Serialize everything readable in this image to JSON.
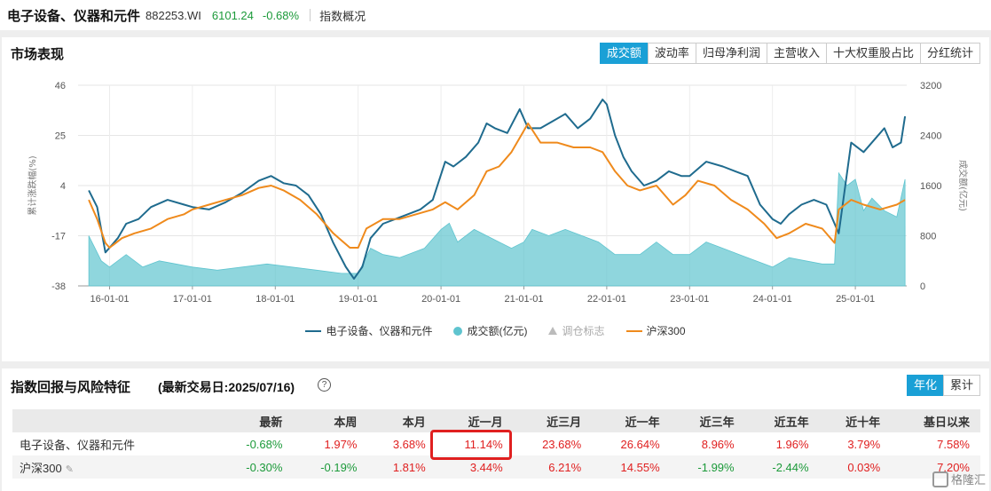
{
  "header": {
    "name": "电子设备、仪器和元件",
    "code": "882253.WI",
    "price": "6101.24",
    "change": "-0.68%",
    "overview": "指数概况"
  },
  "market": {
    "title": "市场表现",
    "tabs": [
      "成交额",
      "波动率",
      "归母净利润",
      "主营收入",
      "十大权重股占比",
      "分红统计"
    ],
    "active_tab": 0
  },
  "chart_data": {
    "type": "line",
    "x_ticks": [
      "16-01-01",
      "17-01-01",
      "18-01-01",
      "19-01-01",
      "20-01-01",
      "21-01-01",
      "22-01-01",
      "23-01-01",
      "24-01-01",
      "25-01-01"
    ],
    "y_left_ticks": [
      "46",
      "25",
      "4",
      "-17",
      "-38"
    ],
    "y_right_ticks": [
      "3200",
      "2400",
      "1600",
      "800",
      "0"
    ],
    "y_left_label": "累计涨跌幅(%)",
    "y_right_label": "成交额(亿元)",
    "ylim_left": [
      -38,
      46
    ],
    "ylim_right": [
      0,
      3200
    ],
    "grid": true,
    "legend_position": "bottom",
    "series": [
      {
        "name": "电子设备、仪器和元件",
        "color": "#1f6b8e",
        "type": "line",
        "axis": "left",
        "points": [
          [
            2015.75,
            2
          ],
          [
            2015.85,
            -5
          ],
          [
            2015.95,
            -24
          ],
          [
            2016.0,
            -22
          ],
          [
            2016.1,
            -18
          ],
          [
            2016.2,
            -12
          ],
          [
            2016.35,
            -10
          ],
          [
            2016.5,
            -5
          ],
          [
            2016.7,
            -2
          ],
          [
            2016.9,
            -4
          ],
          [
            2017.0,
            -5
          ],
          [
            2017.2,
            -6
          ],
          [
            2017.4,
            -3
          ],
          [
            2017.6,
            1
          ],
          [
            2017.8,
            6
          ],
          [
            2017.95,
            8
          ],
          [
            2018.1,
            5
          ],
          [
            2018.25,
            4
          ],
          [
            2018.4,
            0
          ],
          [
            2018.55,
            -8
          ],
          [
            2018.7,
            -20
          ],
          [
            2018.85,
            -30
          ],
          [
            2018.95,
            -35
          ],
          [
            2019.05,
            -30
          ],
          [
            2019.15,
            -18
          ],
          [
            2019.3,
            -12
          ],
          [
            2019.45,
            -10
          ],
          [
            2019.6,
            -8
          ],
          [
            2019.75,
            -6
          ],
          [
            2019.9,
            -2
          ],
          [
            2020.05,
            14
          ],
          [
            2020.15,
            12
          ],
          [
            2020.3,
            16
          ],
          [
            2020.45,
            22
          ],
          [
            2020.55,
            30
          ],
          [
            2020.65,
            28
          ],
          [
            2020.8,
            26
          ],
          [
            2020.95,
            36
          ],
          [
            2021.05,
            28
          ],
          [
            2021.2,
            28
          ],
          [
            2021.35,
            31
          ],
          [
            2021.5,
            34
          ],
          [
            2021.65,
            28
          ],
          [
            2021.8,
            32
          ],
          [
            2021.95,
            40
          ],
          [
            2022.0,
            38
          ],
          [
            2022.1,
            25
          ],
          [
            2022.2,
            16
          ],
          [
            2022.3,
            10
          ],
          [
            2022.45,
            4
          ],
          [
            2022.6,
            6
          ],
          [
            2022.75,
            10
          ],
          [
            2022.9,
            8
          ],
          [
            2023.0,
            8
          ],
          [
            2023.2,
            14
          ],
          [
            2023.4,
            12
          ],
          [
            2023.55,
            10
          ],
          [
            2023.7,
            8
          ],
          [
            2023.85,
            -4
          ],
          [
            2024.0,
            -10
          ],
          [
            2024.1,
            -12
          ],
          [
            2024.2,
            -8
          ],
          [
            2024.35,
            -4
          ],
          [
            2024.5,
            -2
          ],
          [
            2024.65,
            -4
          ],
          [
            2024.8,
            -16
          ],
          [
            2024.95,
            22
          ],
          [
            2025.1,
            18
          ],
          [
            2025.25,
            24
          ],
          [
            2025.35,
            28
          ],
          [
            2025.45,
            20
          ],
          [
            2025.55,
            22
          ],
          [
            2025.6,
            33
          ]
        ]
      },
      {
        "name": "沪深300",
        "color": "#ef8a1c",
        "type": "line",
        "axis": "left",
        "points": [
          [
            2015.75,
            -2
          ],
          [
            2015.85,
            -10
          ],
          [
            2015.95,
            -20
          ],
          [
            2016.0,
            -22
          ],
          [
            2016.15,
            -18
          ],
          [
            2016.3,
            -16
          ],
          [
            2016.5,
            -14
          ],
          [
            2016.7,
            -10
          ],
          [
            2016.9,
            -8
          ],
          [
            2017.0,
            -6
          ],
          [
            2017.2,
            -4
          ],
          [
            2017.4,
            -2
          ],
          [
            2017.6,
            0
          ],
          [
            2017.8,
            3
          ],
          [
            2017.95,
            4
          ],
          [
            2018.1,
            2
          ],
          [
            2018.3,
            -2
          ],
          [
            2018.5,
            -8
          ],
          [
            2018.7,
            -16
          ],
          [
            2018.9,
            -22
          ],
          [
            2019.0,
            -22
          ],
          [
            2019.1,
            -14
          ],
          [
            2019.3,
            -10
          ],
          [
            2019.5,
            -10
          ],
          [
            2019.7,
            -8
          ],
          [
            2019.9,
            -6
          ],
          [
            2020.05,
            -3
          ],
          [
            2020.2,
            -6
          ],
          [
            2020.4,
            0
          ],
          [
            2020.55,
            10
          ],
          [
            2020.7,
            12
          ],
          [
            2020.85,
            18
          ],
          [
            2020.95,
            24
          ],
          [
            2021.05,
            30
          ],
          [
            2021.2,
            22
          ],
          [
            2021.4,
            22
          ],
          [
            2021.6,
            20
          ],
          [
            2021.8,
            20
          ],
          [
            2021.95,
            18
          ],
          [
            2022.1,
            10
          ],
          [
            2022.25,
            4
          ],
          [
            2022.4,
            2
          ],
          [
            2022.6,
            4
          ],
          [
            2022.8,
            -4
          ],
          [
            2022.95,
            0
          ],
          [
            2023.1,
            6
          ],
          [
            2023.3,
            4
          ],
          [
            2023.5,
            -2
          ],
          [
            2023.7,
            -6
          ],
          [
            2023.9,
            -12
          ],
          [
            2024.05,
            -18
          ],
          [
            2024.2,
            -16
          ],
          [
            2024.4,
            -12
          ],
          [
            2024.6,
            -14
          ],
          [
            2024.75,
            -20
          ],
          [
            2024.8,
            -6
          ],
          [
            2024.95,
            -2
          ],
          [
            2025.1,
            -4
          ],
          [
            2025.3,
            -6
          ],
          [
            2025.5,
            -4
          ],
          [
            2025.6,
            -2
          ]
        ]
      },
      {
        "name": "成交额(亿元)",
        "color": "#5fc4cf",
        "type": "area",
        "axis": "right",
        "points": [
          [
            2015.75,
            800
          ],
          [
            2015.9,
            400
          ],
          [
            2016.0,
            300
          ],
          [
            2016.2,
            500
          ],
          [
            2016.4,
            300
          ],
          [
            2016.6,
            400
          ],
          [
            2016.8,
            350
          ],
          [
            2017.0,
            300
          ],
          [
            2017.3,
            250
          ],
          [
            2017.6,
            300
          ],
          [
            2017.9,
            350
          ],
          [
            2018.2,
            300
          ],
          [
            2018.5,
            250
          ],
          [
            2018.8,
            200
          ],
          [
            2019.0,
            200
          ],
          [
            2019.15,
            600
          ],
          [
            2019.3,
            500
          ],
          [
            2019.5,
            450
          ],
          [
            2019.8,
            600
          ],
          [
            2020.0,
            900
          ],
          [
            2020.1,
            1000
          ],
          [
            2020.2,
            700
          ],
          [
            2020.4,
            900
          ],
          [
            2020.55,
            800
          ],
          [
            2020.7,
            700
          ],
          [
            2020.85,
            600
          ],
          [
            2021.0,
            700
          ],
          [
            2021.1,
            900
          ],
          [
            2021.3,
            800
          ],
          [
            2021.5,
            900
          ],
          [
            2021.7,
            800
          ],
          [
            2021.9,
            700
          ],
          [
            2022.1,
            500
          ],
          [
            2022.4,
            500
          ],
          [
            2022.6,
            700
          ],
          [
            2022.8,
            500
          ],
          [
            2023.0,
            500
          ],
          [
            2023.2,
            700
          ],
          [
            2023.4,
            600
          ],
          [
            2023.6,
            500
          ],
          [
            2023.8,
            400
          ],
          [
            2024.0,
            300
          ],
          [
            2024.2,
            450
          ],
          [
            2024.4,
            400
          ],
          [
            2024.6,
            350
          ],
          [
            2024.75,
            350
          ],
          [
            2024.8,
            1800
          ],
          [
            2024.9,
            1600
          ],
          [
            2025.0,
            1700
          ],
          [
            2025.1,
            1200
          ],
          [
            2025.2,
            1400
          ],
          [
            2025.35,
            1200
          ],
          [
            2025.5,
            1100
          ],
          [
            2025.6,
            1700
          ]
        ]
      }
    ],
    "legend": [
      {
        "name": "电子设备、仪器和元件",
        "marker": "line",
        "color": "#1f6b8e"
      },
      {
        "name": "成交额(亿元)",
        "marker": "dot",
        "color": "#5fc4cf"
      },
      {
        "name": "调仓标志",
        "marker": "triangle",
        "color": "#bbbbbb"
      },
      {
        "name": "沪深300",
        "marker": "line",
        "color": "#ef8a1c"
      }
    ]
  },
  "returns": {
    "title": "指数回报与风险特征",
    "subtitle": "(最新交易日:2025/07/16)",
    "help": "?",
    "tabs": [
      "年化",
      "累计"
    ],
    "columns": [
      "",
      "最新",
      "本周",
      "本月",
      "近一月",
      "近三月",
      "近一年",
      "近三年",
      "近五年",
      "近十年",
      "基日以来"
    ],
    "rows": [
      {
        "name": "电子设备、仪器和元件",
        "values": [
          "-0.68%",
          "1.97%",
          "3.68%",
          "11.14%",
          "23.68%",
          "26.64%",
          "8.96%",
          "1.96%",
          "3.79%",
          "7.58%"
        ]
      },
      {
        "name": "沪深300",
        "values": [
          "-0.30%",
          "-0.19%",
          "1.81%",
          "3.44%",
          "6.21%",
          "14.55%",
          "-1.99%",
          "-2.44%",
          "0.03%",
          "7.20%"
        ]
      }
    ]
  },
  "watermark": "格隆汇"
}
